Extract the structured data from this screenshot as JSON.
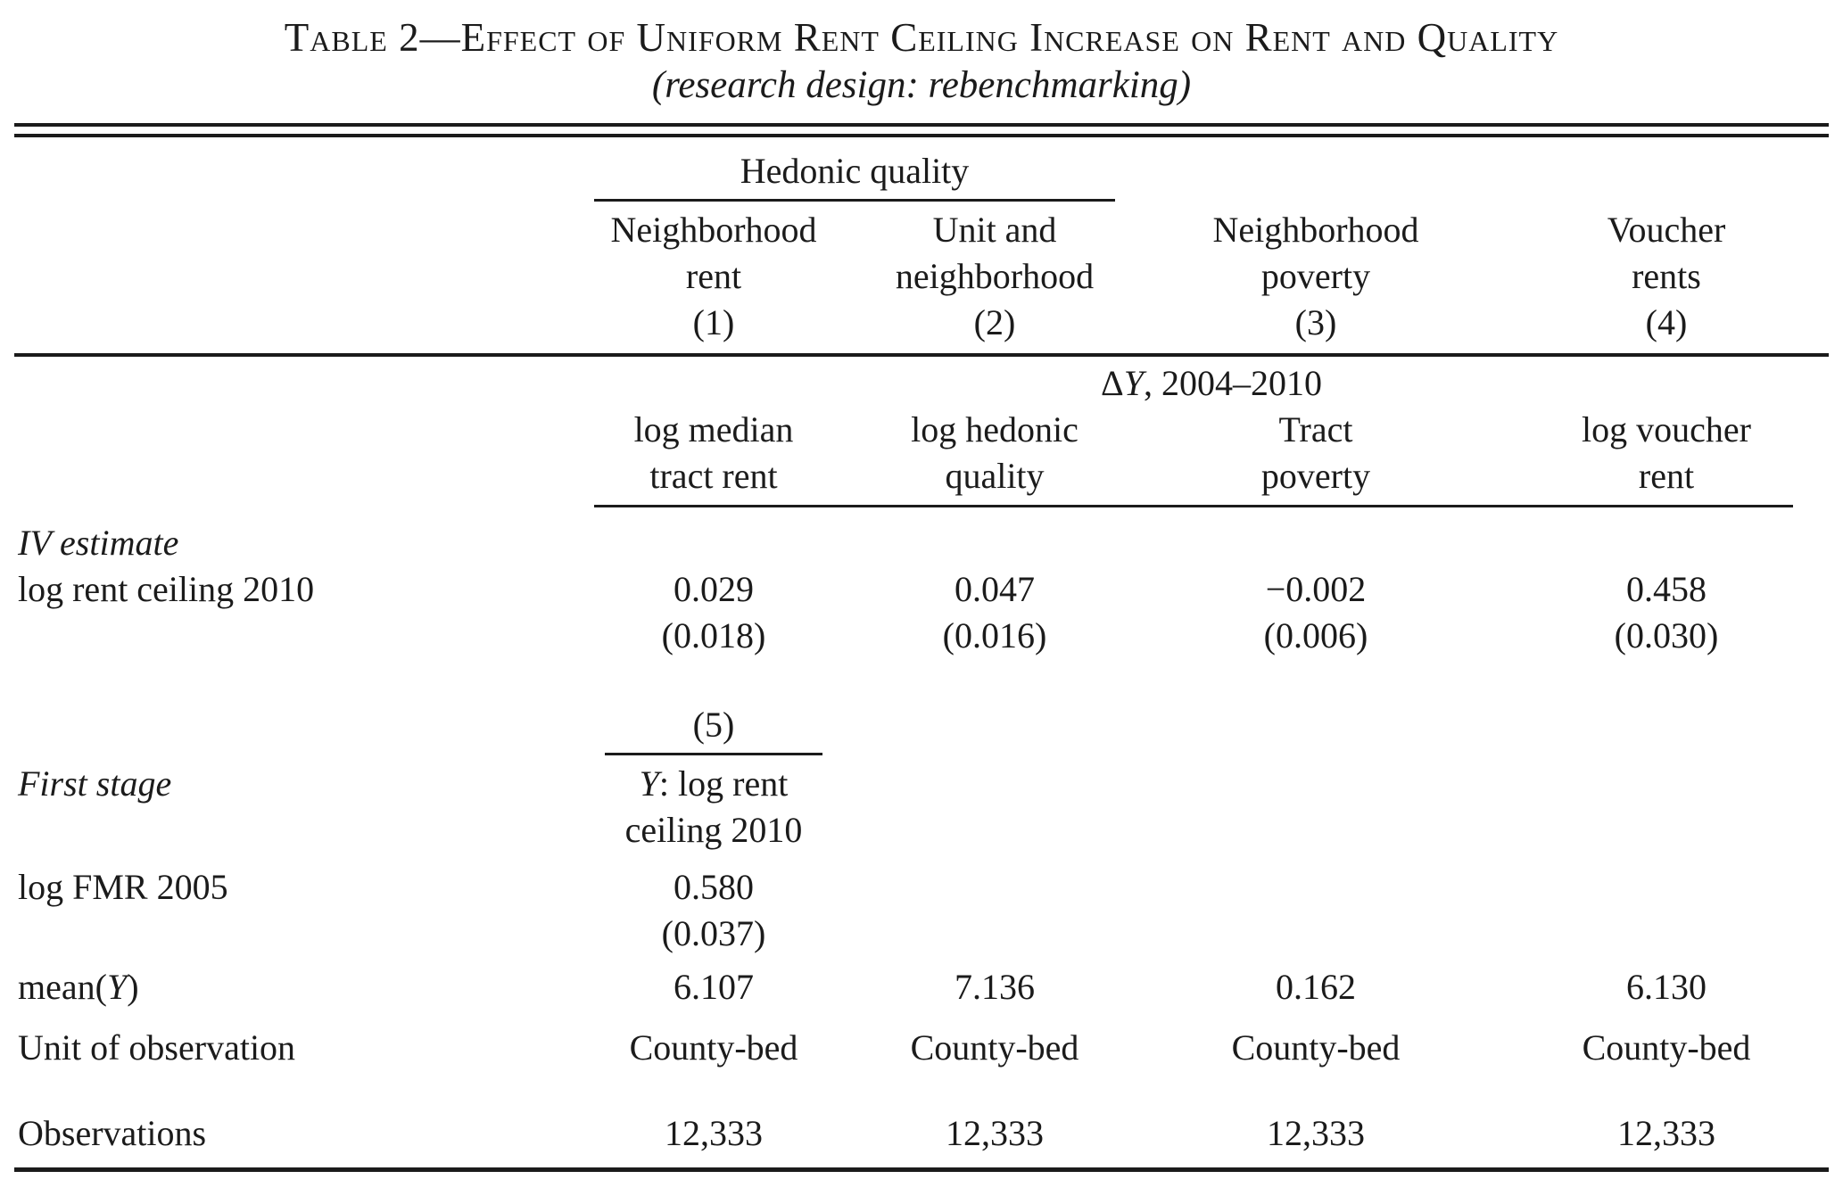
{
  "title": "Table 2—Effect of Uniform Rent Ceiling Increase on Rent and Quality",
  "subtitle": "(research design: rebenchmarking)",
  "header": {
    "group_label": "Hedonic quality",
    "columns": [
      {
        "line1": "Neighborhood",
        "line2": "rent",
        "number": "(1)"
      },
      {
        "line1": "Unit and",
        "line2": "neighborhood",
        "number": "(2)"
      },
      {
        "line1": "Neighborhood",
        "line2": "poverty",
        "number": "(3)"
      },
      {
        "line1": "Voucher",
        "line2": "rents",
        "number": "(4)"
      }
    ]
  },
  "panel_dy": {
    "label_delta": "Δ",
    "label_y": "Y",
    "label_rest": ", 2004–2010",
    "dep_vars": [
      {
        "line1": "log median",
        "line2": "tract rent"
      },
      {
        "line1": "log hedonic",
        "line2": "quality"
      },
      {
        "line1": "Tract",
        "line2": "poverty"
      },
      {
        "line1": "log voucher",
        "line2": "rent"
      }
    ]
  },
  "iv": {
    "section_label": "IV estimate",
    "row_label": "log rent ceiling 2010",
    "coefficients": [
      "0.029",
      "0.047",
      "−0.002",
      "0.458"
    ],
    "std_errors": [
      "(0.018)",
      "(0.016)",
      "(0.006)",
      "(0.030)"
    ]
  },
  "first_stage": {
    "column_number": "(5)",
    "section_label": "First stage",
    "dep_var_y": "Y",
    "dep_var_rest": ": log rent",
    "dep_var_line2": "ceiling 2010",
    "row_label": "log FMR 2005",
    "coefficient": "0.580",
    "std_error": "(0.037)"
  },
  "summary": {
    "mean_label_pre": "mean(",
    "mean_label_y": "Y",
    "mean_label_post": ")",
    "mean_values": [
      "6.107",
      "7.136",
      "0.162",
      "6.130"
    ],
    "unit_label": "Unit of observation",
    "unit_values": [
      "County-bed",
      "County-bed",
      "County-bed",
      "County-bed"
    ],
    "obs_label": "Observations",
    "obs_values": [
      "12,333",
      "12,333",
      "12,333",
      "12,333"
    ]
  }
}
